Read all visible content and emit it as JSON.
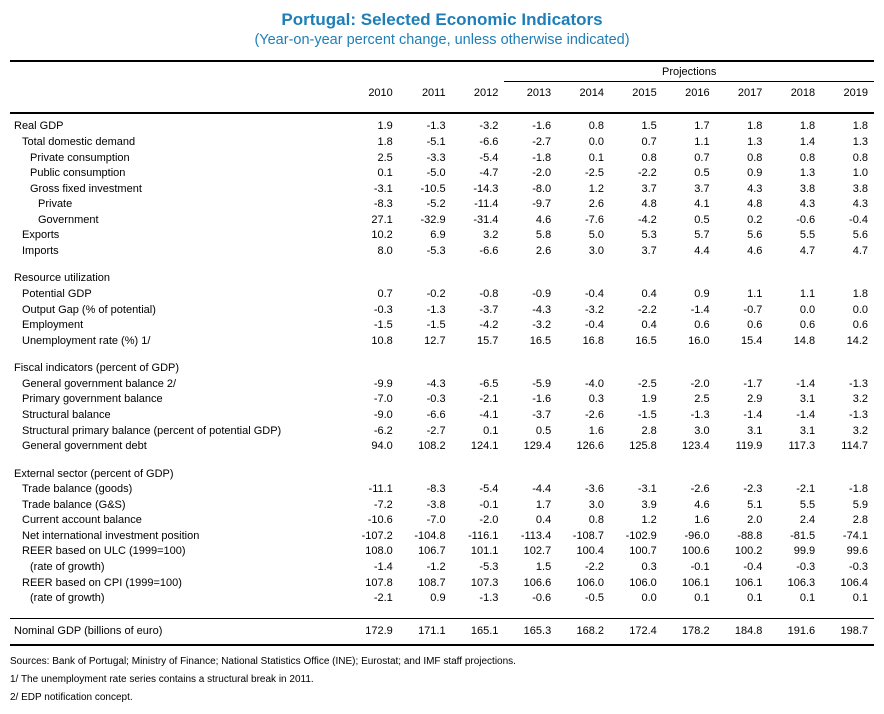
{
  "colors": {
    "accent": "#1e7fb8",
    "rule": "#000000",
    "text": "#000000"
  },
  "title": "Portugal: Selected Economic Indicators",
  "subtitle": "(Year-on-year percent change, unless otherwise indicated)",
  "table": {
    "projections_label": "Projections",
    "years": [
      "2010",
      "2011",
      "2012",
      "2013",
      "2014",
      "2015",
      "2016",
      "2017",
      "2018",
      "2019"
    ],
    "projection_start_index": 3,
    "sections": [
      {
        "rows": [
          {
            "label": "Real GDP",
            "indent": 0,
            "values": [
              "1.9",
              "-1.3",
              "-3.2",
              "-1.6",
              "0.8",
              "1.5",
              "1.7",
              "1.8",
              "1.8",
              "1.8"
            ]
          },
          {
            "label": "Total domestic demand",
            "indent": 1,
            "values": [
              "1.8",
              "-5.1",
              "-6.6",
              "-2.7",
              "0.0",
              "0.7",
              "1.1",
              "1.3",
              "1.4",
              "1.3"
            ]
          },
          {
            "label": "Private consumption",
            "indent": 2,
            "values": [
              "2.5",
              "-3.3",
              "-5.4",
              "-1.8",
              "0.1",
              "0.8",
              "0.7",
              "0.8",
              "0.8",
              "0.8"
            ]
          },
          {
            "label": "Public consumption",
            "indent": 2,
            "values": [
              "0.1",
              "-5.0",
              "-4.7",
              "-2.0",
              "-2.5",
              "-2.2",
              "0.5",
              "0.9",
              "1.3",
              "1.0"
            ]
          },
          {
            "label": "Gross fixed investment",
            "indent": 2,
            "values": [
              "-3.1",
              "-10.5",
              "-14.3",
              "-8.0",
              "1.2",
              "3.7",
              "3.7",
              "4.3",
              "3.8",
              "3.8"
            ]
          },
          {
            "label": "Private",
            "indent": 3,
            "values": [
              "-8.3",
              "-5.2",
              "-11.4",
              "-9.7",
              "2.6",
              "4.8",
              "4.1",
              "4.8",
              "4.3",
              "4.3"
            ]
          },
          {
            "label": "Government",
            "indent": 3,
            "values": [
              "27.1",
              "-32.9",
              "-31.4",
              "4.6",
              "-7.6",
              "-4.2",
              "0.5",
              "0.2",
              "-0.6",
              "-0.4"
            ]
          },
          {
            "label": "Exports",
            "indent": 1,
            "values": [
              "10.2",
              "6.9",
              "3.2",
              "5.8",
              "5.0",
              "5.3",
              "5.7",
              "5.6",
              "5.5",
              "5.6"
            ]
          },
          {
            "label": "Imports",
            "indent": 1,
            "values": [
              "8.0",
              "-5.3",
              "-6.6",
              "2.6",
              "3.0",
              "3.7",
              "4.4",
              "4.6",
              "4.7",
              "4.7"
            ]
          }
        ]
      },
      {
        "rows": [
          {
            "label": "Resource utilization",
            "indent": 0,
            "values": []
          },
          {
            "label": "Potential GDP",
            "indent": 1,
            "values": [
              "0.7",
              "-0.2",
              "-0.8",
              "-0.9",
              "-0.4",
              "0.4",
              "0.9",
              "1.1",
              "1.1",
              "1.8"
            ]
          },
          {
            "label": "Output Gap (% of potential)",
            "indent": 1,
            "values": [
              "-0.3",
              "-1.3",
              "-3.7",
              "-4.3",
              "-3.2",
              "-2.2",
              "-1.4",
              "-0.7",
              "0.0",
              "0.0"
            ]
          },
          {
            "label": "Employment",
            "indent": 1,
            "values": [
              "-1.5",
              "-1.5",
              "-4.2",
              "-3.2",
              "-0.4",
              "0.4",
              "0.6",
              "0.6",
              "0.6",
              "0.6"
            ]
          },
          {
            "label": "Unemployment rate (%)  1/",
            "indent": 1,
            "values": [
              "10.8",
              "12.7",
              "15.7",
              "16.5",
              "16.8",
              "16.5",
              "16.0",
              "15.4",
              "14.8",
              "14.2"
            ]
          }
        ]
      },
      {
        "rows": [
          {
            "label": "Fiscal indicators (percent of GDP)",
            "indent": 0,
            "values": []
          },
          {
            "label": "General government balance  2/",
            "indent": 1,
            "values": [
              "-9.9",
              "-4.3",
              "-6.5",
              "-5.9",
              "-4.0",
              "-2.5",
              "-2.0",
              "-1.7",
              "-1.4",
              "-1.3"
            ]
          },
          {
            "label": "Primary government balance",
            "indent": 1,
            "values": [
              "-7.0",
              "-0.3",
              "-2.1",
              "-1.6",
              "0.3",
              "1.9",
              "2.5",
              "2.9",
              "3.1",
              "3.2"
            ]
          },
          {
            "label": "Structural balance",
            "indent": 1,
            "values": [
              "-9.0",
              "-6.6",
              "-4.1",
              "-3.7",
              "-2.6",
              "-1.5",
              "-1.3",
              "-1.4",
              "-1.4",
              "-1.3"
            ]
          },
          {
            "label": "Structural primary balance (percent of potential GDP)",
            "indent": 1,
            "values": [
              "-6.2",
              "-2.7",
              "0.1",
              "0.5",
              "1.6",
              "2.8",
              "3.0",
              "3.1",
              "3.1",
              "3.2"
            ]
          },
          {
            "label": "General government debt",
            "indent": 1,
            "values": [
              "94.0",
              "108.2",
              "124.1",
              "129.4",
              "126.6",
              "125.8",
              "123.4",
              "119.9",
              "117.3",
              "114.7"
            ]
          }
        ]
      },
      {
        "rows": [
          {
            "label": "External sector (percent of GDP)",
            "indent": 0,
            "values": []
          },
          {
            "label": "Trade balance (goods)",
            "indent": 1,
            "values": [
              "-11.1",
              "-8.3",
              "-5.4",
              "-4.4",
              "-3.6",
              "-3.1",
              "-2.6",
              "-2.3",
              "-2.1",
              "-1.8"
            ]
          },
          {
            "label": "Trade balance (G&S)",
            "indent": 1,
            "values": [
              "-7.2",
              "-3.8",
              "-0.1",
              "1.7",
              "3.0",
              "3.9",
              "4.6",
              "5.1",
              "5.5",
              "5.9"
            ]
          },
          {
            "label": "Current account balance",
            "indent": 1,
            "values": [
              "-10.6",
              "-7.0",
              "-2.0",
              "0.4",
              "0.8",
              "1.2",
              "1.6",
              "2.0",
              "2.4",
              "2.8"
            ]
          },
          {
            "label": "Net international investment position",
            "indent": 1,
            "values": [
              "-107.2",
              "-104.8",
              "-116.1",
              "-113.4",
              "-108.7",
              "-102.9",
              "-96.0",
              "-88.8",
              "-81.5",
              "-74.1"
            ]
          },
          {
            "label": "REER based on ULC (1999=100)",
            "indent": 1,
            "values": [
              "108.0",
              "106.7",
              "101.1",
              "102.7",
              "100.4",
              "100.7",
              "100.6",
              "100.2",
              "99.9",
              "99.6"
            ]
          },
          {
            "label": "(rate of growth)",
            "indent": 2,
            "values": [
              "-1.4",
              "-1.2",
              "-5.3",
              "1.5",
              "-2.2",
              "0.3",
              "-0.1",
              "-0.4",
              "-0.3",
              "-0.3"
            ]
          },
          {
            "label": "REER based on CPI (1999=100)",
            "indent": 1,
            "values": [
              "107.8",
              "108.7",
              "107.3",
              "106.6",
              "106.0",
              "106.0",
              "106.1",
              "106.1",
              "106.3",
              "106.4"
            ]
          },
          {
            "label": "(rate of growth)",
            "indent": 2,
            "values": [
              "-2.1",
              "0.9",
              "-1.3",
              "-0.6",
              "-0.5",
              "0.0",
              "0.1",
              "0.1",
              "0.1",
              "0.1"
            ]
          }
        ]
      },
      {
        "separated": true,
        "rows": [
          {
            "label": "Nominal GDP (billions of euro)",
            "indent": 0,
            "values": [
              "172.9",
              "171.1",
              "165.1",
              "165.3",
              "168.2",
              "172.4",
              "178.2",
              "184.8",
              "191.6",
              "198.7"
            ]
          }
        ]
      }
    ]
  },
  "footnotes": [
    "Sources: Bank of Portugal; Ministry of Finance; National Statistics Office (INE); Eurostat; and IMF staff projections.",
    "1/ The unemployment rate series contains a structural break in 2011.",
    "2/ EDP notification concept."
  ]
}
